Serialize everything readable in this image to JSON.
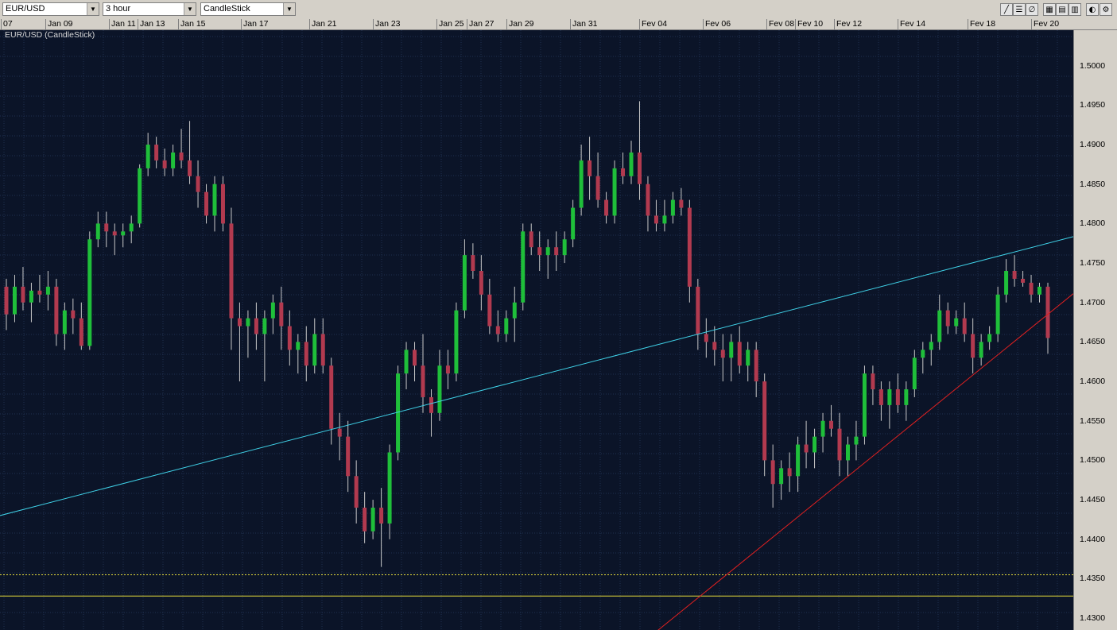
{
  "toolbar": {
    "symbol": "EUR/USD",
    "timeframe": "3 hour",
    "chart_type": "CandleStick",
    "tools": [
      {
        "name": "draw-line-icon",
        "glyph": "╱"
      },
      {
        "name": "horizontal-lines-icon",
        "glyph": "☰"
      },
      {
        "name": "fibonacci-icon",
        "glyph": "∅"
      },
      {
        "name": "grid-icon",
        "glyph": "▦"
      },
      {
        "name": "grid-alt-icon",
        "glyph": "▤"
      },
      {
        "name": "table-icon",
        "glyph": "▥"
      },
      {
        "name": "circle-half-icon",
        "glyph": "◐"
      },
      {
        "name": "settings-icon",
        "glyph": "⚙"
      }
    ]
  },
  "date_axis": {
    "labels": [
      "07",
      "Jan 09",
      "Jan 11",
      "Jan 13",
      "Jan 15",
      "Jan 17",
      "Jan 21",
      "Jan 23",
      "Jan 25",
      "Jan 27",
      "Jan 29",
      "Jan 31",
      "Fev 04",
      "Fev 06",
      "Fev 08",
      "Fev 10",
      "Fev 12",
      "Fev 14",
      "Fev 18",
      "Fev 20"
    ]
  },
  "colors": {
    "background": "#0b1428",
    "grid": "#1f3050",
    "up": "#1fbf3a",
    "down": "#b23a4f",
    "wick": "#c8c8c8",
    "trendline_upper": "#3fd0e6",
    "trendline_lower": "#e02020",
    "hline": "#e6dc3a"
  },
  "chart_data": {
    "type": "candlestick",
    "title": "EUR/USD (CandleStick)",
    "ylim": [
      1.4285,
      1.5045
    ],
    "yticks": [
      "1.5000",
      "1.4950",
      "1.4900",
      "1.4850",
      "1.4800",
      "1.4750",
      "1.4700",
      "1.4650",
      "1.4600",
      "1.4550",
      "1.4500",
      "1.4450",
      "1.4400",
      "1.4350",
      "1.4300"
    ],
    "x_range_dates": [
      "Jan 07",
      "Fev 20"
    ],
    "grid": true,
    "candles": [
      [
        "Jan 07",
        1.472,
        1.473,
        1.4665,
        1.4685
      ],
      [
        "Jan 08",
        1.4685,
        1.4735,
        1.4675,
        1.472
      ],
      [
        "Jan 08",
        1.472,
        1.4745,
        1.469,
        1.47
      ],
      [
        "Jan 08",
        1.47,
        1.4725,
        1.4675,
        1.4715
      ],
      [
        "Jan 09",
        1.4715,
        1.4735,
        1.47,
        1.471
      ],
      [
        "Jan 09",
        1.471,
        1.474,
        1.469,
        1.472
      ],
      [
        "Jan 09",
        1.472,
        1.473,
        1.4645,
        1.466
      ],
      [
        "Jan 10",
        1.466,
        1.47,
        1.464,
        1.469
      ],
      [
        "Jan 10",
        1.469,
        1.4705,
        1.466,
        1.468
      ],
      [
        "Jan 10",
        1.468,
        1.47,
        1.464,
        1.4645
      ],
      [
        "Jan 10",
        1.4645,
        1.479,
        1.464,
        1.478
      ],
      [
        "Jan 11",
        1.478,
        1.4815,
        1.477,
        1.48
      ],
      [
        "Jan 11",
        1.48,
        1.4815,
        1.477,
        1.479
      ],
      [
        "Jan 11",
        1.479,
        1.48,
        1.476,
        1.4785
      ],
      [
        "Jan 12",
        1.4785,
        1.48,
        1.477,
        1.479
      ],
      [
        "Jan 12",
        1.479,
        1.481,
        1.4775,
        1.48
      ],
      [
        "Jan 13",
        1.48,
        1.4875,
        1.4795,
        1.487
      ],
      [
        "Jan 13",
        1.487,
        1.4915,
        1.486,
        1.49
      ],
      [
        "Jan 13",
        1.49,
        1.491,
        1.487,
        1.488
      ],
      [
        "Jan 14",
        1.488,
        1.4895,
        1.486,
        1.487
      ],
      [
        "Jan 14",
        1.487,
        1.49,
        1.486,
        1.489
      ],
      [
        "Jan 14",
        1.489,
        1.492,
        1.487,
        1.488
      ],
      [
        "Jan 15",
        1.488,
        1.493,
        1.485,
        1.486
      ],
      [
        "Jan 15",
        1.486,
        1.488,
        1.482,
        1.484
      ],
      [
        "Jan 15",
        1.484,
        1.485,
        1.48,
        1.481
      ],
      [
        "Jan 16",
        1.481,
        1.486,
        1.479,
        1.485
      ],
      [
        "Jan 16",
        1.485,
        1.486,
        1.479,
        1.48
      ],
      [
        "Jan 16",
        1.48,
        1.482,
        1.464,
        1.468
      ],
      [
        "Jan 17",
        1.468,
        1.47,
        1.46,
        1.467
      ],
      [
        "Jan 17",
        1.467,
        1.469,
        1.463,
        1.468
      ],
      [
        "Jan 17",
        1.468,
        1.47,
        1.464,
        1.466
      ],
      [
        "Jan 18",
        1.466,
        1.469,
        1.46,
        1.468
      ],
      [
        "Jan 18",
        1.468,
        1.471,
        1.466,
        1.47
      ],
      [
        "Jan 18",
        1.47,
        1.472,
        1.464,
        1.467
      ],
      [
        "Jan 19",
        1.467,
        1.469,
        1.462,
        1.464
      ],
      [
        "Jan 19",
        1.464,
        1.466,
        1.461,
        1.465
      ],
      [
        "Jan 20",
        1.465,
        1.467,
        1.46,
        1.462
      ],
      [
        "Jan 20",
        1.462,
        1.468,
        1.461,
        1.466
      ],
      [
        "Jan 20",
        1.466,
        1.468,
        1.461,
        1.462
      ],
      [
        "Jan 21",
        1.462,
        1.463,
        1.452,
        1.454
      ],
      [
        "Jan 21",
        1.454,
        1.456,
        1.45,
        1.453
      ],
      [
        "Jan 21",
        1.453,
        1.455,
        1.446,
        1.448
      ],
      [
        "Jan 22",
        1.448,
        1.45,
        1.442,
        1.444
      ],
      [
        "Jan 22",
        1.444,
        1.446,
        1.4395,
        1.441
      ],
      [
        "Jan 22",
        1.441,
        1.445,
        1.44,
        1.444
      ],
      [
        "Jan 22",
        1.444,
        1.4465,
        1.4365,
        1.442
      ],
      [
        "Jan 23",
        1.442,
        1.452,
        1.44,
        1.451
      ],
      [
        "Jan 23",
        1.451,
        1.462,
        1.45,
        1.461
      ],
      [
        "Jan 23",
        1.461,
        1.465,
        1.459,
        1.464
      ],
      [
        "Jan 24",
        1.464,
        1.465,
        1.46,
        1.462
      ],
      [
        "Jan 24",
        1.462,
        1.466,
        1.456,
        1.458
      ],
      [
        "Jan 24",
        1.458,
        1.459,
        1.453,
        1.456
      ],
      [
        "Jan 24",
        1.456,
        1.464,
        1.455,
        1.462
      ],
      [
        "Jan 25",
        1.462,
        1.464,
        1.459,
        1.461
      ],
      [
        "Jan 25",
        1.461,
        1.47,
        1.46,
        1.469
      ],
      [
        "Jan 25",
        1.469,
        1.478,
        1.468,
        1.476
      ],
      [
        "Jan 26",
        1.476,
        1.4775,
        1.473,
        1.474
      ],
      [
        "Jan 26",
        1.474,
        1.476,
        1.469,
        1.471
      ],
      [
        "Jan 26",
        1.471,
        1.473,
        1.466,
        1.467
      ],
      [
        "Jan 27",
        1.467,
        1.469,
        1.465,
        1.466
      ],
      [
        "Jan 27",
        1.466,
        1.469,
        1.465,
        1.468
      ],
      [
        "Jan 27",
        1.468,
        1.472,
        1.465,
        1.47
      ],
      [
        "Jan 28",
        1.47,
        1.48,
        1.469,
        1.479
      ],
      [
        "Jan 28",
        1.479,
        1.48,
        1.476,
        1.477
      ],
      [
        "Jan 28",
        1.477,
        1.479,
        1.474,
        1.476
      ],
      [
        "Jan 29",
        1.476,
        1.478,
        1.473,
        1.477
      ],
      [
        "Jan 29",
        1.477,
        1.479,
        1.474,
        1.476
      ],
      [
        "Jan 29",
        1.476,
        1.479,
        1.475,
        1.478
      ],
      [
        "Jan 30",
        1.478,
        1.483,
        1.477,
        1.482
      ],
      [
        "Jan 30",
        1.482,
        1.49,
        1.481,
        1.488
      ],
      [
        "Jan 30",
        1.488,
        1.491,
        1.483,
        1.486
      ],
      [
        "Jan 31",
        1.486,
        1.489,
        1.482,
        1.483
      ],
      [
        "Jan 31",
        1.483,
        1.484,
        1.48,
        1.481
      ],
      [
        "Jan 31",
        1.481,
        1.488,
        1.48,
        1.487
      ],
      [
        "Fev 01",
        1.487,
        1.489,
        1.485,
        1.486
      ],
      [
        "Fev 01",
        1.486,
        1.4905,
        1.485,
        1.489
      ],
      [
        "Fev 01",
        1.489,
        1.4955,
        1.483,
        1.485
      ],
      [
        "Fev 02",
        1.485,
        1.486,
        1.479,
        1.481
      ],
      [
        "Fev 02",
        1.481,
        1.483,
        1.479,
        1.48
      ],
      [
        "Fev 02",
        1.48,
        1.483,
        1.479,
        1.481
      ],
      [
        "Fev 03",
        1.481,
        1.484,
        1.48,
        1.483
      ],
      [
        "Fev 03",
        1.483,
        1.4845,
        1.481,
        1.482
      ],
      [
        "Fev 03",
        1.482,
        1.483,
        1.47,
        1.472
      ],
      [
        "Fev 04",
        1.472,
        1.473,
        1.464,
        1.466
      ],
      [
        "Fev 04",
        1.466,
        1.468,
        1.463,
        1.465
      ],
      [
        "Fev 04",
        1.465,
        1.467,
        1.462,
        1.464
      ],
      [
        "Fev 05",
        1.464,
        1.466,
        1.46,
        1.463
      ],
      [
        "Fev 05",
        1.463,
        1.466,
        1.46,
        1.465
      ],
      [
        "Fev 05",
        1.465,
        1.467,
        1.461,
        1.462
      ],
      [
        "Fev 06",
        1.462,
        1.465,
        1.46,
        1.464
      ],
      [
        "Fev 06",
        1.464,
        1.465,
        1.458,
        1.46
      ],
      [
        "Fev 06",
        1.46,
        1.461,
        1.448,
        1.45
      ],
      [
        "Fev 07",
        1.45,
        1.452,
        1.444,
        1.447
      ],
      [
        "Fev 07",
        1.447,
        1.45,
        1.445,
        1.449
      ],
      [
        "Fev 07",
        1.449,
        1.451,
        1.446,
        1.448
      ],
      [
        "Fev 08",
        1.448,
        1.453,
        1.446,
        1.452
      ],
      [
        "Fev 08",
        1.452,
        1.455,
        1.449,
        1.451
      ],
      [
        "Fev 08",
        1.451,
        1.454,
        1.449,
        1.453
      ],
      [
        "Fev 09",
        1.453,
        1.456,
        1.451,
        1.455
      ],
      [
        "Fev 09",
        1.455,
        1.457,
        1.453,
        1.454
      ],
      [
        "Fev 09",
        1.454,
        1.456,
        1.448,
        1.45
      ],
      [
        "Fev 10",
        1.45,
        1.453,
        1.448,
        1.452
      ],
      [
        "Fev 10",
        1.452,
        1.455,
        1.45,
        1.453
      ],
      [
        "Fev 10",
        1.453,
        1.462,
        1.452,
        1.461
      ],
      [
        "Fev 11",
        1.461,
        1.462,
        1.457,
        1.459
      ],
      [
        "Fev 11",
        1.459,
        1.46,
        1.455,
        1.457
      ],
      [
        "Fev 11",
        1.457,
        1.46,
        1.454,
        1.459
      ],
      [
        "Fev 12",
        1.459,
        1.461,
        1.456,
        1.457
      ],
      [
        "Fev 12",
        1.457,
        1.46,
        1.455,
        1.459
      ],
      [
        "Fev 12",
        1.459,
        1.464,
        1.458,
        1.463
      ],
      [
        "Fev 13",
        1.463,
        1.465,
        1.461,
        1.464
      ],
      [
        "Fev 13",
        1.464,
        1.466,
        1.462,
        1.465
      ],
      [
        "Fev 13",
        1.465,
        1.471,
        1.464,
        1.469
      ],
      [
        "Fev 14",
        1.469,
        1.47,
        1.466,
        1.467
      ],
      [
        "Fev 14",
        1.467,
        1.469,
        1.466,
        1.468
      ],
      [
        "Fev 14",
        1.468,
        1.47,
        1.465,
        1.466
      ],
      [
        "Fev 15",
        1.466,
        1.468,
        1.461,
        1.463
      ],
      [
        "Fev 15",
        1.463,
        1.466,
        1.462,
        1.465
      ],
      [
        "Fev 15",
        1.465,
        1.467,
        1.464,
        1.466
      ],
      [
        "Fev 16",
        1.466,
        1.472,
        1.465,
        1.471
      ],
      [
        "Fev 16",
        1.471,
        1.4755,
        1.47,
        1.474
      ],
      [
        "Fev 17",
        1.474,
        1.476,
        1.472,
        1.473
      ],
      [
        "Fev 17",
        1.473,
        1.474,
        1.472,
        1.4725
      ],
      [
        "Fev 18",
        1.4725,
        1.4735,
        1.47,
        1.471
      ],
      [
        "Fev 18",
        1.471,
        1.4725,
        1.47,
        1.472
      ],
      [
        "Fev 20",
        1.472,
        1.4725,
        1.4635,
        1.4655
      ]
    ],
    "lines": [
      {
        "name": "upper-trendline",
        "from": [
          "Jan 07",
          1.443
        ],
        "to": [
          "Fev 20",
          1.4775
        ]
      },
      {
        "name": "lower-trendline",
        "from": [
          "Fev 03",
          1.43
        ],
        "to": [
          "Fev 20",
          1.4685
        ]
      },
      {
        "name": "horizontal-solid",
        "y": 1.4328
      },
      {
        "name": "horizontal-dotted",
        "y": 1.4355
      }
    ]
  }
}
